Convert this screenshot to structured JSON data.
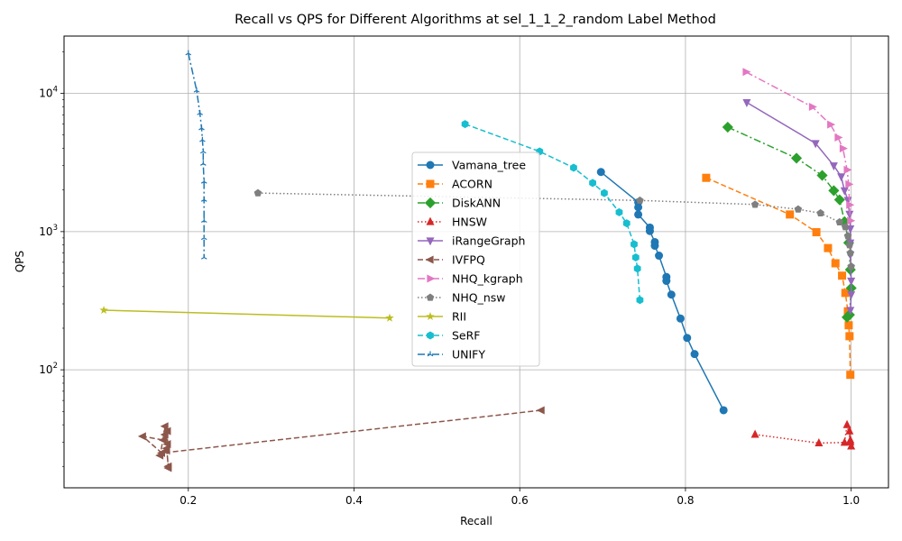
{
  "chart_data": {
    "type": "line",
    "title": "Recall vs QPS for Different Algorithms at sel_1_1_2_random Label Method",
    "xlabel": "Recall",
    "ylabel": "QPS",
    "xlim": [
      0.05,
      1.045
    ],
    "ylim": [
      14,
      26000
    ],
    "yscale": "log",
    "grid": true,
    "legend_position": "center",
    "x_ticks": [
      {
        "value": 0.2,
        "label": "0.2"
      },
      {
        "value": 0.4,
        "label": "0.4"
      },
      {
        "value": 0.6,
        "label": "0.6"
      },
      {
        "value": 0.8,
        "label": "0.8"
      },
      {
        "value": 1.0,
        "label": "1.0"
      }
    ],
    "y_ticks": [
      {
        "value": 100,
        "base": "10",
        "exp": "2"
      },
      {
        "value": 1000,
        "base": "10",
        "exp": "3"
      },
      {
        "value": 10000,
        "base": "10",
        "exp": "4"
      }
    ],
    "series": [
      {
        "name": "Vamana_tree",
        "color": "#1f77b4",
        "marker": "circle",
        "dash": "solid",
        "x": [
          0.698,
          0.743,
          0.743,
          0.743,
          0.757,
          0.757,
          0.763,
          0.763,
          0.768,
          0.777,
          0.777,
          0.783,
          0.794,
          0.802,
          0.811,
          0.846
        ],
        "y": [
          2700,
          1630,
          1500,
          1330,
          1070,
          1010,
          840,
          790,
          670,
          470,
          440,
          350,
          235,
          170,
          130,
          51
        ]
      },
      {
        "name": "ACORN",
        "color": "#ff7f0e",
        "marker": "square",
        "dash": "dashed",
        "x": [
          0.825,
          0.926,
          0.958,
          0.972,
          0.981,
          0.989,
          0.993,
          0.996,
          0.997,
          0.998,
          0.999
        ],
        "y": [
          2450,
          1330,
          990,
          760,
          590,
          480,
          360,
          265,
          210,
          175,
          92
        ]
      },
      {
        "name": "DiskANN",
        "color": "#2ca02c",
        "marker": "diamond",
        "dash": "dashdot",
        "x": [
          0.851,
          0.934,
          0.965,
          0.979,
          0.986,
          0.992,
          0.997,
          0.999,
          1.0,
          0.998,
          0.995
        ],
        "y": [
          5700,
          3400,
          2550,
          1980,
          1700,
          1180,
          830,
          530,
          390,
          250,
          240
        ]
      },
      {
        "name": "HNSW",
        "color": "#d62728",
        "marker": "triangle-up",
        "dash": "dotted",
        "x": [
          0.884,
          0.961,
          0.992,
          0.995,
          0.999,
          1.0,
          0.998,
          0.999
        ],
        "y": [
          34,
          29.5,
          29.8,
          40,
          31,
          28,
          36,
          30
        ]
      },
      {
        "name": "iRangeGraph",
        "color": "#9467bd",
        "marker": "triangle-down",
        "dash": "solid",
        "x": [
          0.874,
          0.957,
          0.979,
          0.988,
          0.992,
          0.996,
          0.998,
          0.999,
          0.999,
          0.999,
          1.0,
          1.0,
          0.999
        ],
        "y": [
          8600,
          4350,
          3000,
          2500,
          1980,
          1690,
          1340,
          1050,
          830,
          680,
          440,
          350,
          270
        ]
      },
      {
        "name": "IVFPQ",
        "color": "#8c564b",
        "marker": "triangle-left",
        "dash": "dashed",
        "x": [
          0.626,
          0.168,
          0.145,
          0.17,
          0.175,
          0.175,
          0.172,
          0.166,
          0.174,
          0.172,
          0.176,
          0.174,
          0.176
        ],
        "y": [
          51,
          25,
          33,
          31,
          36,
          29,
          39,
          24,
          27,
          34,
          20,
          26,
          19.5
        ]
      },
      {
        "name": "NHQ_kgraph",
        "color": "#e377c2",
        "marker": "triangle-right",
        "dash": "dashdot",
        "x": [
          0.873,
          0.953,
          0.975,
          0.984,
          0.99,
          0.995,
          0.997,
          0.998,
          0.999
        ],
        "y": [
          14300,
          8000,
          5950,
          4800,
          4000,
          2800,
          2200,
          1560,
          1200
        ]
      },
      {
        "name": "NHQ_nsw",
        "color": "#7f7f7f",
        "marker": "pentagon",
        "dash": "dotted",
        "x": [
          0.284,
          0.745,
          0.884,
          0.936,
          0.963,
          0.986,
          0.993,
          0.996,
          0.998,
          0.999,
          1.0
        ],
        "y": [
          1900,
          1680,
          1570,
          1450,
          1360,
          1170,
          1080,
          930,
          800,
          700,
          560
        ]
      },
      {
        "name": "RII",
        "color": "#bcbd22",
        "marker": "star",
        "dash": "solid",
        "x": [
          0.098,
          0.443
        ],
        "y": [
          270,
          237
        ]
      },
      {
        "name": "SeRF",
        "color": "#17becf",
        "marker": "hexagon",
        "dash": "dashed",
        "x": [
          0.534,
          0.624,
          0.665,
          0.688,
          0.702,
          0.72,
          0.729,
          0.738,
          0.74,
          0.742,
          0.745
        ],
        "y": [
          6000,
          3800,
          2900,
          2250,
          1900,
          1380,
          1150,
          810,
          650,
          540,
          320
        ]
      },
      {
        "name": "UNIFY",
        "color": "#1f77b4",
        "marker": "tri",
        "dash": "dashdot",
        "x": [
          0.2,
          0.21,
          0.214,
          0.216,
          0.217,
          0.218,
          0.218,
          0.219,
          0.219,
          0.219,
          0.219,
          0.219
        ],
        "y": [
          19500,
          10500,
          7200,
          5600,
          4600,
          3800,
          3100,
          2300,
          1700,
          1200,
          900,
          650
        ]
      }
    ]
  }
}
